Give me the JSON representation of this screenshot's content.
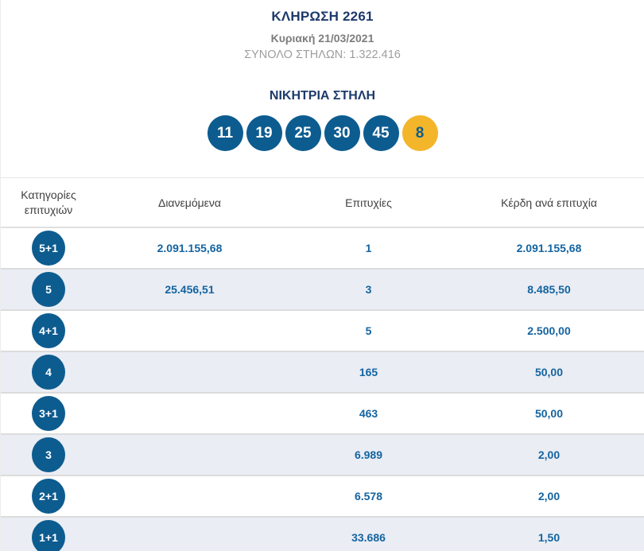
{
  "header": {
    "title": "ΚΛΗΡΩΣΗ 2261",
    "date": "Κυριακή 21/03/2021",
    "total_columns": "ΣΥΝΟΛΟ ΣΤΗΛΩΝ: 1.322.416"
  },
  "winning": {
    "title": "ΝΙΚΗΤΡΙΑ ΣΤΗΛΗ",
    "numbers": [
      "11",
      "19",
      "25",
      "30",
      "45"
    ],
    "bonus": "8"
  },
  "table": {
    "headers": [
      "Κατηγορίες επιτυχιών",
      "Διανεμόμενα",
      "Επιτυχίες",
      "Κέρδη ανά επιτυχία"
    ],
    "rows": [
      {
        "category": "5+1",
        "distributed": "2.091.155,68",
        "winners": "1",
        "prize": "2.091.155,68"
      },
      {
        "category": "5",
        "distributed": "25.456,51",
        "winners": "3",
        "prize": "8.485,50"
      },
      {
        "category": "4+1",
        "distributed": "",
        "winners": "5",
        "prize": "2.500,00"
      },
      {
        "category": "4",
        "distributed": "",
        "winners": "165",
        "prize": "50,00"
      },
      {
        "category": "3+1",
        "distributed": "",
        "winners": "463",
        "prize": "50,00"
      },
      {
        "category": "3",
        "distributed": "",
        "winners": "6.989",
        "prize": "2,00"
      },
      {
        "category": "2+1",
        "distributed": "",
        "winners": "6.578",
        "prize": "2,00"
      },
      {
        "category": "1+1",
        "distributed": "",
        "winners": "33.686",
        "prize": "1,50"
      }
    ]
  },
  "colors": {
    "navy": "#1d3a6b",
    "gray_date": "#7d7d7d",
    "gray_total": "#9e9e9e",
    "header_text": "#404040",
    "value_blue": "#1464a0",
    "ball_blue": "#0d5c90",
    "bonus_yellow": "#f3b52a",
    "row_alt": "#eaedf4"
  }
}
